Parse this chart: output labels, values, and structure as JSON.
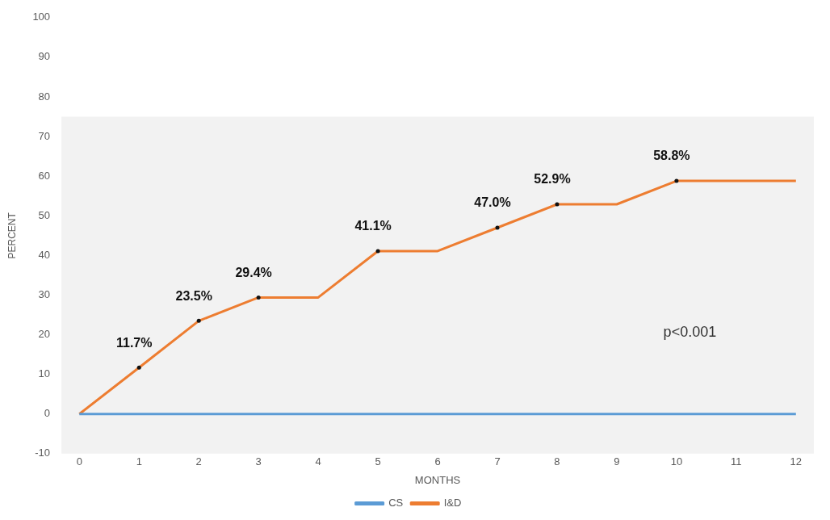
{
  "chart_data": {
    "type": "line",
    "xlabel": "MONTHS",
    "ylabel": "PERCENT",
    "x": [
      0,
      1,
      2,
      3,
      4,
      5,
      6,
      7,
      8,
      9,
      10,
      11,
      12
    ],
    "series": [
      {
        "name": "CS",
        "color": "#5b9bd5",
        "values": [
          0,
          0,
          0,
          0,
          0,
          0,
          0,
          0,
          0,
          0,
          0,
          0,
          0
        ]
      },
      {
        "name": "I&D",
        "color": "#ed7d31",
        "values": [
          0,
          11.7,
          23.5,
          29.4,
          29.4,
          41.1,
          41.1,
          47.0,
          52.9,
          52.9,
          58.8,
          58.8,
          58.8
        ],
        "value_labels": [
          null,
          "11.7%",
          "23.5%",
          "29.4%",
          null,
          "41.1%",
          null,
          "47.0%",
          "52.9%",
          null,
          "58.8%",
          null,
          null
        ]
      }
    ],
    "xlim": [
      -0.3,
      12.3
    ],
    "xticks": [
      0,
      1,
      2,
      3,
      4,
      5,
      6,
      7,
      8,
      9,
      10,
      11,
      12
    ],
    "ylim": [
      -10,
      100
    ],
    "yticks": [
      -10,
      0,
      10,
      20,
      30,
      40,
      50,
      60,
      70,
      80,
      90,
      100
    ],
    "bands": [
      {
        "axis": "y",
        "from": -10,
        "to": 75,
        "color": "#f2f2f2"
      }
    ],
    "annotations": [
      "p<0.001"
    ],
    "grid": false,
    "legend": "bottom",
    "line_style": "solid"
  }
}
